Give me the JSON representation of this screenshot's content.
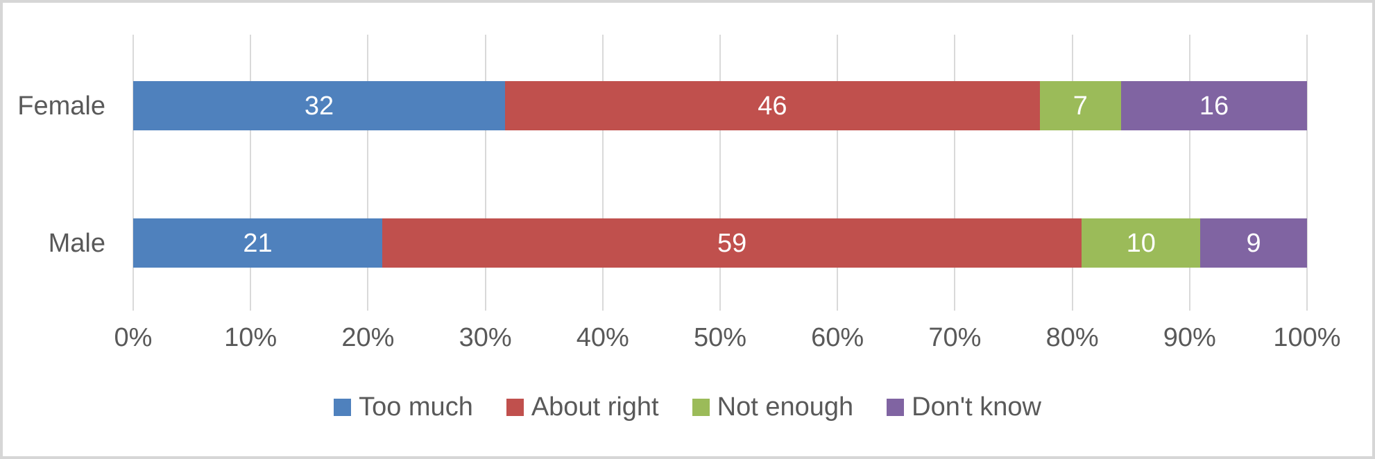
{
  "chart_data": {
    "type": "bar",
    "orientation": "horizontal",
    "stacking": "100-percent-stacked",
    "title": "",
    "xlabel": "",
    "ylabel": "",
    "categories": [
      "Female",
      "Male"
    ],
    "series": [
      {
        "name": "Too much",
        "color": "#4F81BD",
        "values": [
          32,
          21
        ]
      },
      {
        "name": "About right",
        "color": "#C0504D",
        "values": [
          46,
          59
        ]
      },
      {
        "name": "Not enough",
        "color": "#9BBB59",
        "values": [
          7,
          10
        ]
      },
      {
        "name": "Don't know",
        "color": "#8064A2",
        "values": [
          16,
          9
        ]
      }
    ],
    "data_labels_shown": true,
    "x_axis": {
      "min": 0,
      "max": 100,
      "tick_step": 10,
      "ticks": [
        "0%",
        "10%",
        "20%",
        "30%",
        "40%",
        "50%",
        "60%",
        "70%",
        "80%",
        "90%",
        "100%"
      ]
    },
    "legend": {
      "position": "bottom",
      "entries": [
        "Too much",
        "About right",
        "Not enough",
        "Don't know"
      ]
    },
    "grid": "vertical-on",
    "colors": {
      "gridline": "#D9D9D9",
      "axis_text": "#595959",
      "category_text": "#595959",
      "legend_text": "#595959",
      "bar_label_text": "#FFFFFF",
      "frame_border": "#D6D6D6",
      "background": "#FFFFFF"
    }
  }
}
